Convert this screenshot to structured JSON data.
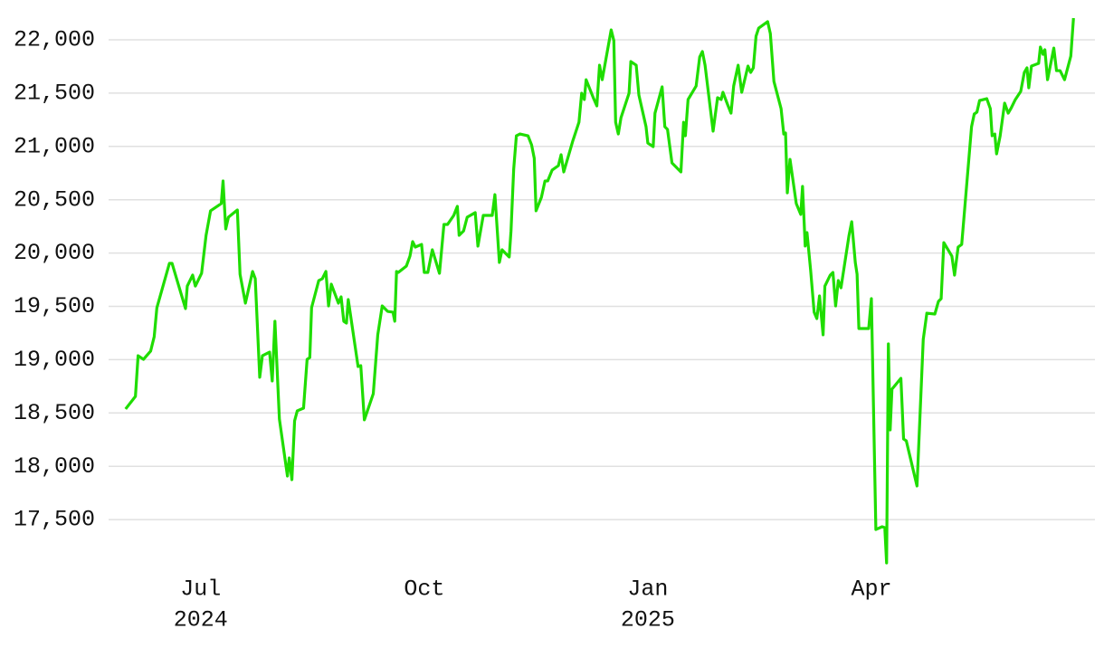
{
  "chart_data": {
    "type": "line",
    "color": "#1fdd00",
    "grid": true,
    "ylim": [
      17050,
      22250
    ],
    "yticks": [
      {
        "value": 17500,
        "label": "17,500"
      },
      {
        "value": 18000,
        "label": "18,000"
      },
      {
        "value": 18500,
        "label": "18,500"
      },
      {
        "value": 19000,
        "label": "19,000"
      },
      {
        "value": 19500,
        "label": "19,500"
      },
      {
        "value": 20000,
        "label": "20,000"
      },
      {
        "value": 20500,
        "label": "20,500"
      },
      {
        "value": 21000,
        "label": "21,000"
      },
      {
        "value": 21500,
        "label": "21,500"
      },
      {
        "value": 22000,
        "label": "22,000"
      }
    ],
    "xlim": [
      2024.397,
      2025.5
    ],
    "xticks": [
      {
        "value": 2024.5,
        "label": "Jul",
        "year": "2024"
      },
      {
        "value": 2024.75,
        "label": "Oct"
      },
      {
        "value": 2025.0,
        "label": "Jan",
        "year": "2025"
      },
      {
        "value": 2025.25,
        "label": "Apr"
      }
    ],
    "x": [
      2024.416,
      2024.427,
      2024.43,
      2024.436,
      2024.444,
      2024.448,
      2024.451,
      2024.465,
      2024.468,
      2024.474,
      2024.483,
      2024.485,
      2024.491,
      2024.494,
      2024.501,
      2024.506,
      2024.511,
      2024.523,
      2024.525,
      2024.528,
      2024.531,
      2024.541,
      2024.544,
      2024.55,
      2024.558,
      2024.561,
      2024.566,
      2024.569,
      2024.577,
      2024.58,
      2024.583,
      2024.588,
      2024.597,
      2024.599,
      2024.602,
      2024.605,
      2024.608,
      2024.615,
      2024.619,
      2024.622,
      2024.624,
      2024.632,
      2024.636,
      2024.64,
      2024.643,
      2024.646,
      2024.654,
      2024.657,
      2024.66,
      2024.663,
      2024.665,
      2024.676,
      2024.679,
      2024.683,
      2024.693,
      2024.698,
      2024.703,
      2024.709,
      2024.715,
      2024.717,
      2024.719,
      2024.721,
      2024.73,
      2024.734,
      2024.737,
      2024.74,
      2024.747,
      2024.75,
      2024.754,
      2024.759,
      2024.767,
      2024.772,
      2024.776,
      2024.783,
      2024.787,
      2024.789,
      2024.794,
      2024.798,
      2024.807,
      2024.81,
      2024.816,
      2024.826,
      2024.829,
      2024.834,
      2024.837,
      2024.845,
      2024.847,
      2024.85,
      2024.853,
      2024.857,
      2024.866,
      2024.87,
      2024.873,
      2024.875,
      2024.881,
      2024.885,
      2024.888,
      2024.893,
      2024.9,
      2024.903,
      2024.906,
      2024.916,
      2024.923,
      2024.926,
      2024.929,
      2024.931,
      2024.939,
      2024.943,
      2024.946,
      2024.949,
      2024.959,
      2024.962,
      2024.964,
      2024.967,
      2024.97,
      2024.979,
      2024.981,
      2024.987,
      2024.99,
      2024.998,
      2025.0,
      2025.006,
      2025.008,
      2025.016,
      2025.019,
      2025.022,
      2025.027,
      2025.037,
      2025.04,
      2025.042,
      2025.045,
      2025.054,
      2025.058,
      2025.061,
      2025.064,
      2025.073,
      2025.078,
      2025.082,
      2025.084,
      2025.089,
      2025.093,
      2025.096,
      2025.101,
      2025.105,
      2025.112,
      2025.115,
      2025.118,
      2025.121,
      2025.124,
      2025.134,
      2025.137,
      2025.141,
      2025.149,
      2025.152,
      2025.154,
      2025.156,
      2025.159,
      2025.166,
      2025.171,
      2025.173,
      2025.176,
      2025.178,
      2025.182,
      2025.186,
      2025.189,
      2025.192,
      2025.196,
      2025.198,
      2025.204,
      2025.207,
      2025.21,
      2025.213,
      2025.216,
      2025.225,
      2025.228,
      2025.232,
      2025.234,
      2025.236,
      2025.247,
      2025.25,
      2025.255,
      2025.262,
      2025.265,
      2025.267,
      2025.269,
      2025.271,
      2025.273,
      2025.283,
      2025.286,
      2025.289,
      2025.301,
      2025.308,
      2025.312,
      2025.321,
      2025.325,
      2025.328,
      2025.331,
      2025.34,
      2025.343,
      2025.347,
      2025.351,
      2025.362,
      2025.365,
      2025.368,
      2025.371,
      2025.379,
      2025.383,
      2025.385,
      2025.388,
      2025.39,
      2025.394,
      2025.399,
      2025.403,
      2025.406,
      2025.411,
      2025.417,
      2025.421,
      2025.424,
      2025.426,
      2025.429,
      2025.437,
      2025.439,
      2025.442,
      2025.444,
      2025.447,
      2025.454,
      2025.457,
      2025.461,
      2025.466,
      2025.473,
      2025.476
    ],
    "values": [
      18537,
      18655,
      19037,
      19003,
      19080,
      19216,
      19487,
      19903,
      19903,
      19733,
      19479,
      19690,
      19793,
      19690,
      19810,
      20166,
      20396,
      20464,
      20676,
      20226,
      20336,
      20404,
      19801,
      19530,
      19827,
      19759,
      18834,
      19037,
      19071,
      18800,
      19360,
      18443,
      17908,
      18078,
      17874,
      18426,
      18520,
      18545,
      19003,
      19020,
      19487,
      19742,
      19759,
      19827,
      19504,
      19708,
      19530,
      19589,
      19360,
      19343,
      19564,
      18935,
      18944,
      18435,
      18681,
      19233,
      19504,
      19453,
      19445,
      19360,
      19827,
      19818,
      19878,
      19971,
      20107,
      20056,
      20081,
      19818,
      19818,
      20031,
      19810,
      20268,
      20268,
      20353,
      20438,
      20166,
      20208,
      20336,
      20379,
      20065,
      20353,
      20353,
      20548,
      19912,
      20031,
      19963,
      20208,
      20786,
      21100,
      21117,
      21100,
      21015,
      20888,
      20396,
      20523,
      20676,
      20676,
      20778,
      20820,
      20922,
      20761,
      21049,
      21227,
      21499,
      21440,
      21626,
      21457,
      21380,
      21762,
      21626,
      22093,
      21992,
      21227,
      21117,
      21270,
      21499,
      21796,
      21762,
      21482,
      21185,
      21032,
      20998,
      21312,
      21559,
      21185,
      21160,
      20846,
      20761,
      21227,
      21100,
      21440,
      21567,
      21839,
      21890,
      21762,
      21143,
      21457,
      21440,
      21508,
      21397,
      21312,
      21567,
      21762,
      21508,
      21754,
      21694,
      21737,
      22034,
      22110,
      22170,
      22059,
      21610,
      21355,
      21117,
      21126,
      20565,
      20879,
      20464,
      20362,
      20625,
      20065,
      20192,
      19844,
      19445,
      19385,
      19598,
      19233,
      19690,
      19793,
      19818,
      19504,
      19742,
      19674,
      20166,
      20294,
      19912,
      19801,
      19292,
      19292,
      19572,
      17407,
      17433,
      17424,
      17093,
      19148,
      18341,
      18723,
      18825,
      18256,
      18239,
      17815,
      19190,
      19436,
      19428,
      19547,
      19572,
      20098,
      19971,
      19793,
      20056,
      20081,
      21185,
      21304,
      21321,
      21431,
      21448,
      21355,
      21100,
      21117,
      20930,
      21100,
      21406,
      21312,
      21355,
      21440,
      21516,
      21694,
      21737,
      21550,
      21754,
      21779,
      21932,
      21864,
      21907,
      21626,
      21923,
      21711,
      21711,
      21626,
      21847,
      22204
    ]
  }
}
